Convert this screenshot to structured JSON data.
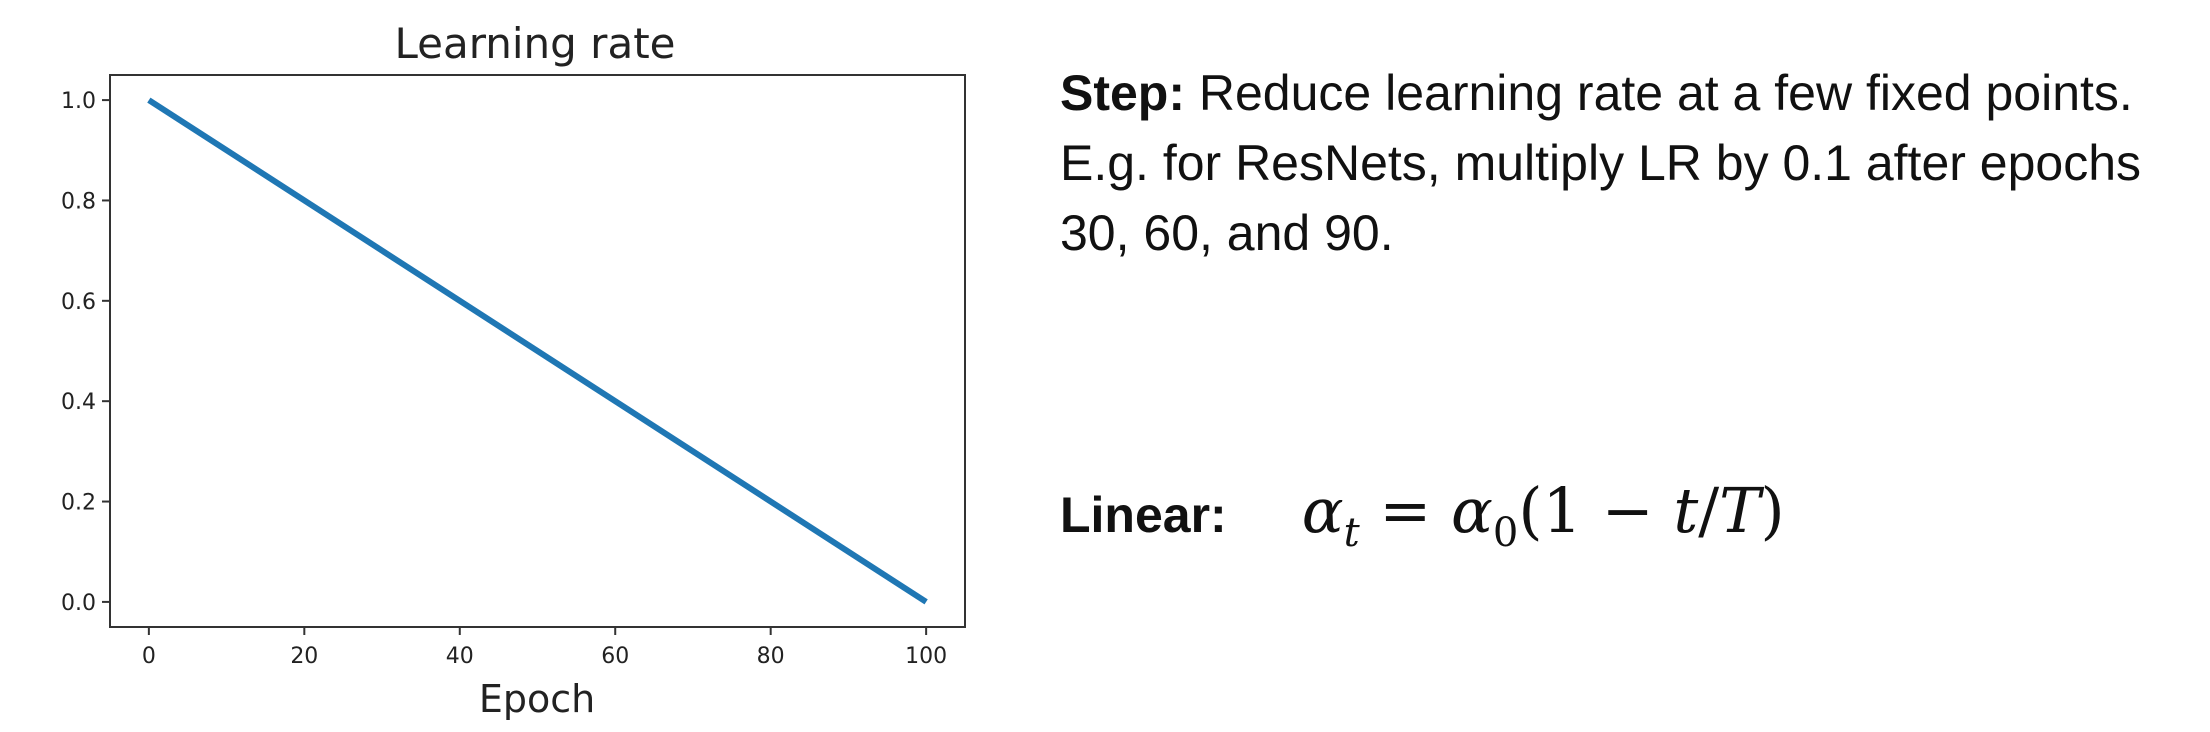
{
  "chart_data": {
    "type": "line",
    "title": "Learning rate",
    "xlabel": "Epoch",
    "ylabel": "",
    "xlim": [
      -5,
      105
    ],
    "ylim": [
      -0.05,
      1.05
    ],
    "x_ticks": [
      "0",
      "20",
      "40",
      "60",
      "80",
      "100"
    ],
    "y_ticks": [
      "0.0",
      "0.2",
      "0.4",
      "0.6",
      "0.8",
      "1.0"
    ],
    "series": [
      {
        "x": [
          0,
          100
        ],
        "y": [
          1.0,
          0.0
        ],
        "color": "#1f77b4"
      }
    ],
    "grid": false,
    "legend": "none"
  },
  "step": {
    "label": "Step:",
    "text": " Reduce learning rate at a few fixed points. E.g. for ResNets, multiply LR by 0.1 after epochs 30, 60, and 90."
  },
  "linear": {
    "label": "Linear:",
    "alpha": "α",
    "sub_t": "t",
    "equals": " = ",
    "sub_0": "0",
    "rhs": "(1 − ",
    "t": "t",
    "slash": "/",
    "T": "T",
    "close": ")"
  }
}
